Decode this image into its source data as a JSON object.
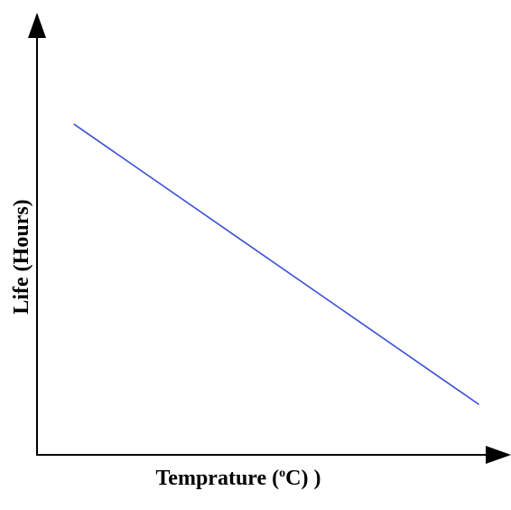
{
  "chart_data": {
    "type": "line",
    "xlabel": "Temprature (",
    "xlabel_sup": "o",
    "xlabel_tail": "C)  )",
    "ylabel": "Life (Hours)",
    "axis_ticks": false,
    "grid": false,
    "series": [
      {
        "color": "#3b4fd8",
        "points": [
          {
            "x": 0.08,
            "y": 0.79
          },
          {
            "x": 0.96,
            "y": 0.12
          }
        ]
      }
    ],
    "xlim": [
      0,
      1
    ],
    "ylim": [
      0,
      1
    ]
  }
}
